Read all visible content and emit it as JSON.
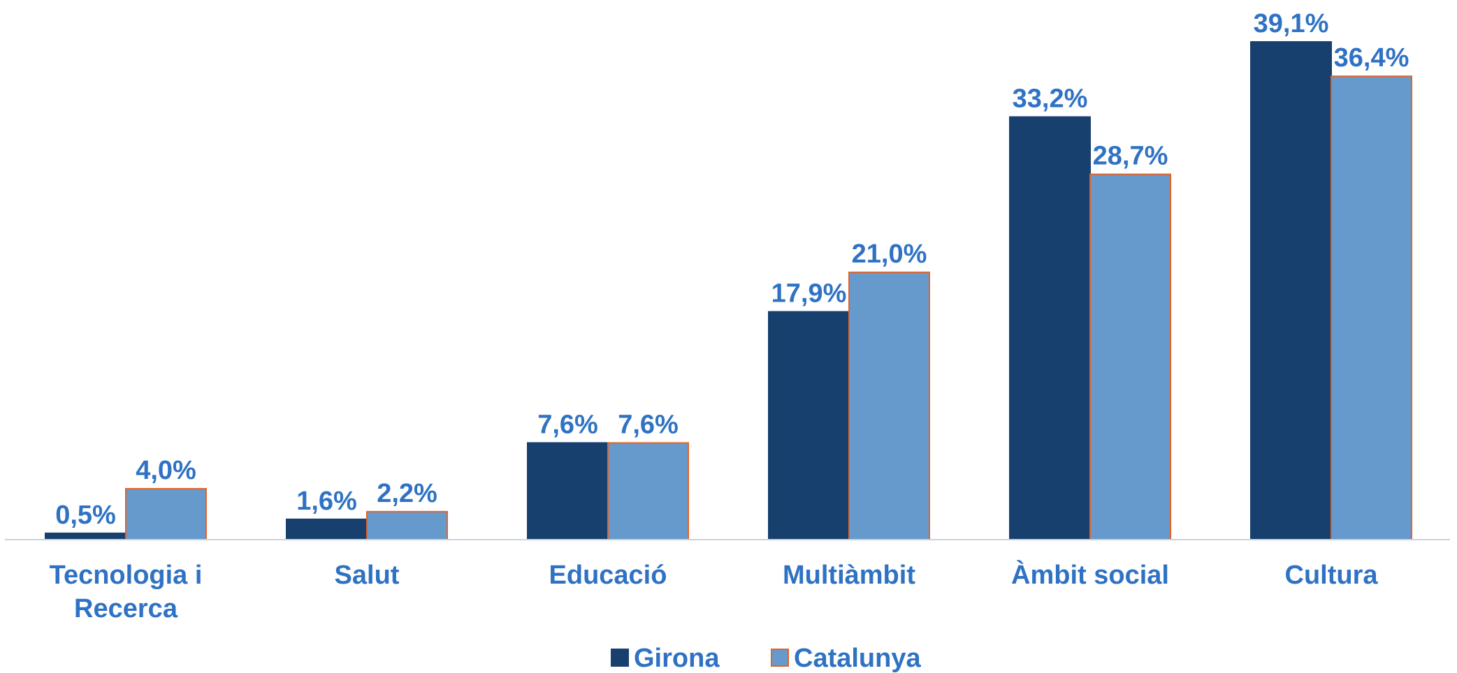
{
  "chart_data": {
    "type": "bar",
    "categories": [
      "Tecnologia i Recerca",
      "Salut",
      "Educació",
      "Multiàmbit",
      "Àmbit social",
      "Cultura"
    ],
    "series": [
      {
        "name": "Girona",
        "color": "#17406f",
        "values": [
          0.5,
          1.6,
          7.6,
          17.9,
          33.2,
          39.1
        ],
        "value_labels": [
          "0,5%",
          "1,6%",
          "7,6%",
          "17,9%",
          "33,2%",
          "39,1%"
        ]
      },
      {
        "name": "Catalunya",
        "color": "#6699cc",
        "values": [
          4.0,
          2.2,
          7.6,
          21.0,
          28.7,
          36.4
        ],
        "value_labels": [
          "4,0%",
          "2,2%",
          "7,6%",
          "21,0%",
          "28,7%",
          "36,4%"
        ]
      }
    ],
    "legend": "bottom"
  }
}
